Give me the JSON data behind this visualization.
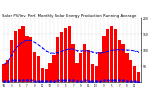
{
  "title": "Solar PV/Inv. Perf. Monthly Solar Energy Production Running Average",
  "title_fontsize": 2.8,
  "bar_color": "#FF0000",
  "line_color": "#0000FF",
  "dot_color": "#0000FF",
  "background_color": "#FFFFFF",
  "grid_color": "#999999",
  "values": [
    55,
    70,
    130,
    160,
    165,
    175,
    145,
    140,
    95,
    80,
    45,
    40,
    60,
    85,
    140,
    155,
    170,
    175,
    120,
    60,
    90,
    120,
    100,
    55,
    50,
    95,
    145,
    165,
    175,
    165,
    130,
    120,
    90,
    70,
    50,
    30
  ],
  "running_avg": [
    55,
    62,
    85,
    104,
    117,
    126,
    131,
    130,
    124,
    116,
    107,
    97,
    91,
    90,
    92,
    96,
    100,
    104,
    103,
    98,
    97,
    98,
    97,
    94,
    91,
    91,
    93,
    96,
    99,
    101,
    101,
    101,
    100,
    99,
    97,
    95
  ],
  "ylim": [
    0,
    200
  ],
  "yticks": [
    50,
    100,
    150,
    200
  ],
  "ytick_labels": [
    "50",
    "100",
    "150",
    "200"
  ]
}
